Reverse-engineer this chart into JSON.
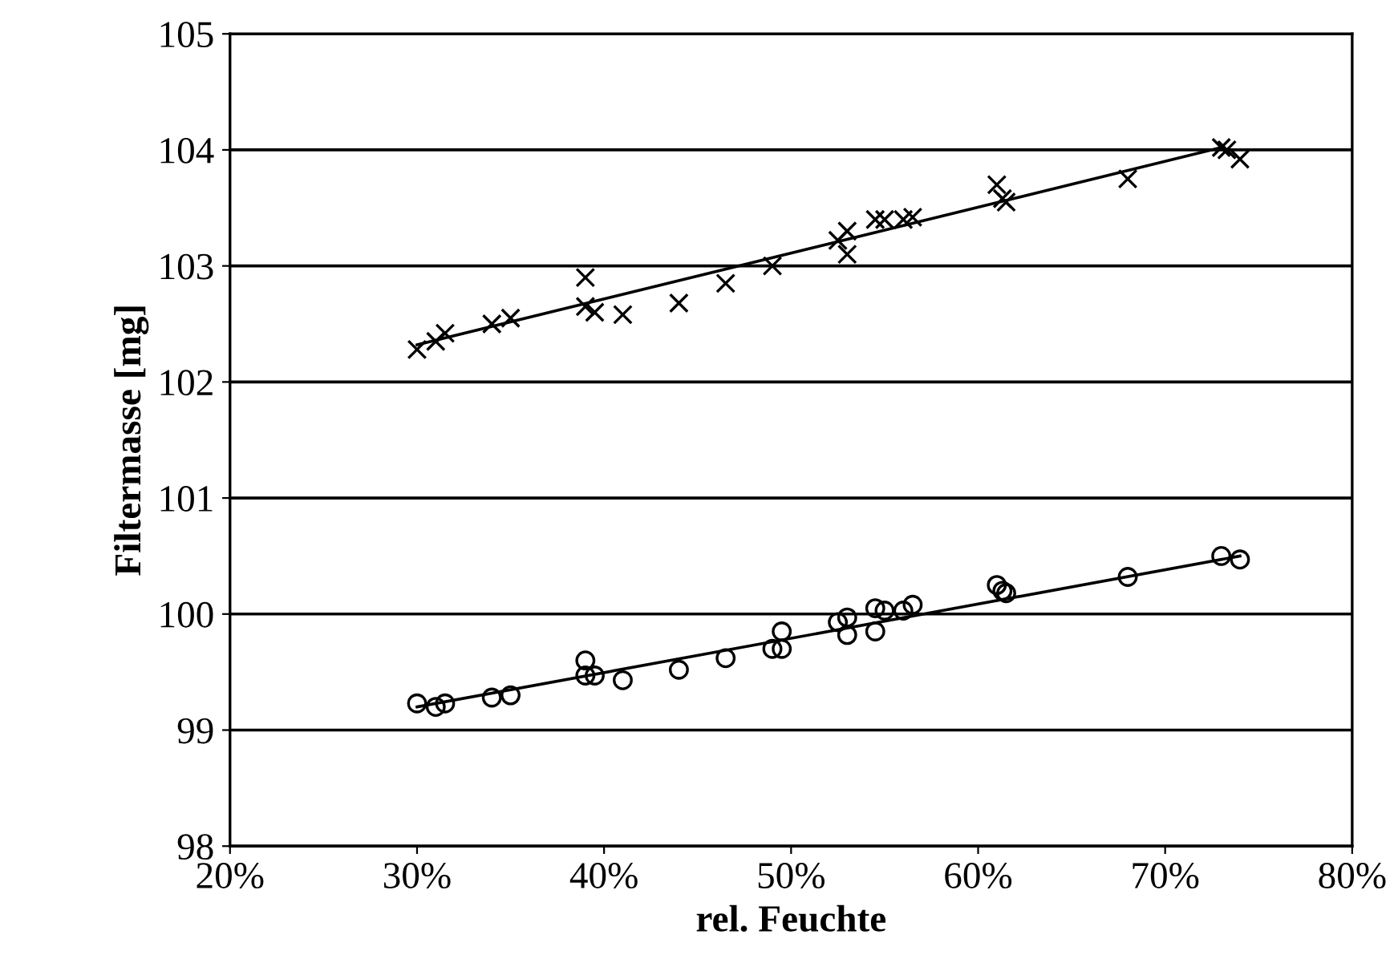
{
  "chart_data": {
    "type": "scatter",
    "xlabel": "rel. Feuchte",
    "ylabel": "Filtermasse [mg]",
    "xlim": [
      20,
      80
    ],
    "xticks": [
      {
        "value": 20,
        "label": "20%"
      },
      {
        "value": 30,
        "label": "30%"
      },
      {
        "value": 40,
        "label": "40%"
      },
      {
        "value": 50,
        "label": "50%"
      },
      {
        "value": 60,
        "label": "60%"
      },
      {
        "value": 70,
        "label": "70%"
      },
      {
        "value": 80,
        "label": "80%"
      }
    ],
    "ylim": [
      98,
      105
    ],
    "yticks": [
      98,
      99,
      100,
      101,
      102,
      103,
      104,
      105
    ],
    "grid": "y",
    "series": [
      {
        "marker": "cross",
        "color": "#000000",
        "x": [
          30,
          31,
          31.5,
          34,
          35,
          39,
          39,
          39.5,
          41,
          44,
          46.5,
          49,
          52.5,
          53,
          53,
          54.5,
          55,
          56,
          56.5,
          61,
          61.3,
          61.5,
          68,
          73,
          73.3,
          74
        ],
        "values": [
          102.28,
          102.35,
          102.42,
          102.5,
          102.55,
          102.9,
          102.65,
          102.6,
          102.58,
          102.68,
          102.85,
          103.0,
          103.22,
          103.3,
          103.1,
          103.4,
          103.4,
          103.4,
          103.42,
          103.7,
          103.58,
          103.55,
          103.75,
          104.02,
          104.0,
          103.92
        ]
      },
      {
        "marker": "circle",
        "color": "#000000",
        "x": [
          30,
          31,
          31.5,
          34,
          35,
          39,
          39,
          39.5,
          41,
          44,
          46.5,
          49,
          49.5,
          49.5,
          52.5,
          53,
          53,
          54.5,
          54.5,
          55,
          56,
          56.5,
          61,
          61.3,
          61.5,
          68,
          73,
          74
        ],
        "values": [
          99.23,
          99.2,
          99.23,
          99.28,
          99.3,
          99.6,
          99.47,
          99.47,
          99.43,
          99.52,
          99.62,
          99.7,
          99.85,
          99.7,
          99.93,
          99.97,
          99.82,
          100.05,
          99.85,
          100.03,
          100.03,
          100.08,
          100.25,
          100.2,
          100.18,
          100.32,
          100.5,
          100.47
        ]
      },
      {
        "type": "line",
        "marker": "none",
        "color": "#000000",
        "x": [
          30,
          73
        ],
        "values": [
          102.32,
          104.02
        ]
      },
      {
        "type": "line",
        "marker": "none",
        "color": "#000000",
        "x": [
          30,
          74
        ],
        "values": [
          99.2,
          100.5
        ]
      }
    ]
  }
}
